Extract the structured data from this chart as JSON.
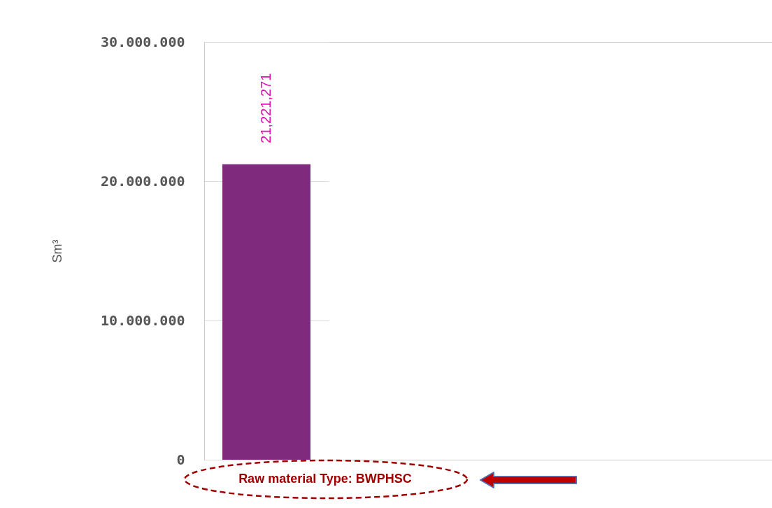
{
  "chart_data": {
    "type": "bar",
    "ylabel": "Sm³",
    "categories": [
      null
    ],
    "values": [
      21221271
    ],
    "color": "#7f2a7c",
    "value_labels": [
      "21,221,271"
    ],
    "ylim": [
      0,
      30000000
    ],
    "yticks": [
      {
        "value": 0,
        "label": "0"
      },
      {
        "value": 10000000,
        "label": "10.000.000"
      },
      {
        "value": 20000000,
        "label": "20.000.000"
      },
      {
        "value": 30000000,
        "label": "30.000.000"
      }
    ],
    "grid": "y",
    "annotations": [
      "Raw material Type: BWPHSC"
    ]
  }
}
